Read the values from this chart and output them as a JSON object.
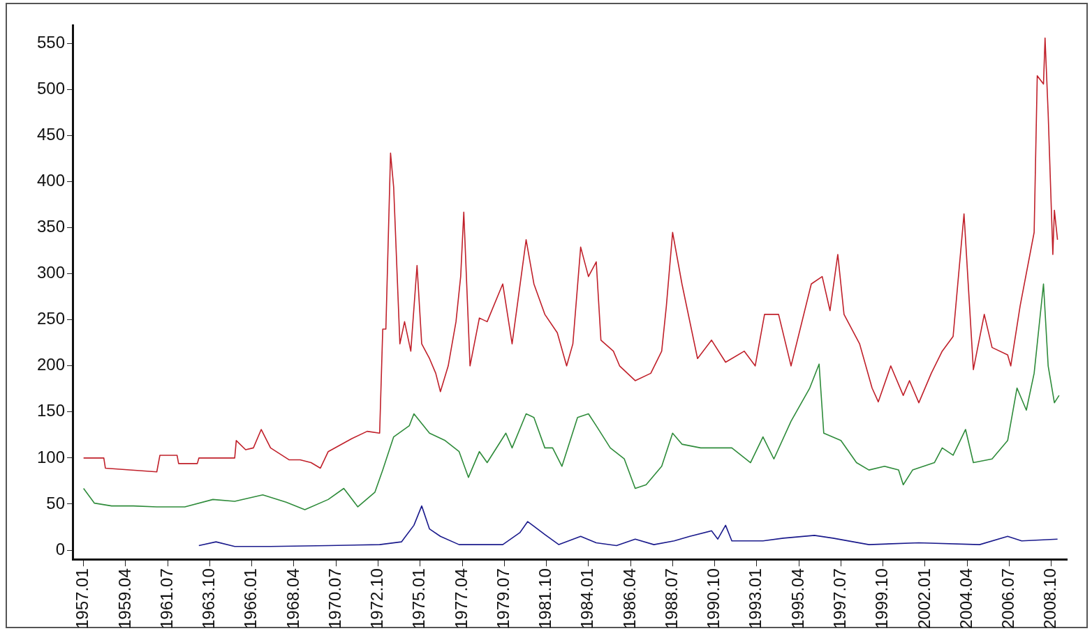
{
  "chart_data": {
    "type": "line",
    "xlim": [
      "1956-06",
      "2009-08"
    ],
    "xticks": [
      {
        "value": "1957-01",
        "label": "1957.01"
      },
      {
        "value": "1959-04",
        "label": "1959.04"
      },
      {
        "value": "1961-07",
        "label": "1961.07"
      },
      {
        "value": "1963-10",
        "label": "1963.10"
      },
      {
        "value": "1966-01",
        "label": "1966.01"
      },
      {
        "value": "1968-04",
        "label": "1968.04"
      },
      {
        "value": "1970-07",
        "label": "1970.07"
      },
      {
        "value": "1972-10",
        "label": "1972.10"
      },
      {
        "value": "1975-01",
        "label": "1975.01"
      },
      {
        "value": "1977-04",
        "label": "1977.04"
      },
      {
        "value": "1979-07",
        "label": "1979.07"
      },
      {
        "value": "1981-10",
        "label": "1981.10"
      },
      {
        "value": "1984-01",
        "label": "1984.01"
      },
      {
        "value": "1986-04",
        "label": "1986.04"
      },
      {
        "value": "1988-07",
        "label": "1988.07"
      },
      {
        "value": "1990-10",
        "label": "1990.10"
      },
      {
        "value": "1993-01",
        "label": "1993.01"
      },
      {
        "value": "1995-04",
        "label": "1995.04"
      },
      {
        "value": "1997-07",
        "label": "1997.07"
      },
      {
        "value": "1999-10",
        "label": "1999.10"
      },
      {
        "value": "2002-01",
        "label": "2002.01"
      },
      {
        "value": "2004-04",
        "label": "2004.04"
      },
      {
        "value": "2006-07",
        "label": "2006.07"
      },
      {
        "value": "2008-10",
        "label": "2008.10"
      }
    ],
    "ylim": [
      -10,
      570
    ],
    "yticks": [
      0,
      50,
      100,
      150,
      200,
      250,
      300,
      350,
      400,
      450,
      500,
      550
    ],
    "grid": false,
    "legend": false,
    "marker": "none",
    "line_style": "solid",
    "series": [
      {
        "color": "#c0202a",
        "x": [
          "1957-01",
          "1958-02",
          "1958-03",
          "1960-12",
          "1961-02",
          "1962-01",
          "1962-02",
          "1963-02",
          "1963-03",
          "1965-02",
          "1965-03",
          "1965-09",
          "1966-02",
          "1966-07",
          "1967-01",
          "1968-01",
          "1968-08",
          "1969-03",
          "1969-09",
          "1970-02",
          "1971-05",
          "1972-03",
          "1972-11",
          "1973-01",
          "1973-03",
          "1973-06",
          "1973-08",
          "1973-12",
          "1974-03",
          "1974-07",
          "1974-11",
          "1975-02",
          "1975-07",
          "1975-11",
          "1976-02",
          "1976-07",
          "1976-12",
          "1977-03",
          "1977-05",
          "1977-09",
          "1978-03",
          "1978-08",
          "1979-06",
          "1979-12",
          "1980-09",
          "1981-02",
          "1981-09",
          "1982-05",
          "1982-11",
          "1983-03",
          "1983-08",
          "1984-01",
          "1984-06",
          "1984-09",
          "1985-05",
          "1985-09",
          "1986-07",
          "1987-05",
          "1987-12",
          "1988-03",
          "1988-07",
          "1989-01",
          "1989-11",
          "1990-08",
          "1991-05",
          "1992-05",
          "1992-12",
          "1993-06",
          "1994-03",
          "1994-11",
          "1995-12",
          "1996-07",
          "1996-12",
          "1997-05",
          "1997-09",
          "1998-07",
          "1999-03",
          "1999-07",
          "2000-03",
          "2000-11",
          "2001-03",
          "2001-09",
          "2002-05",
          "2002-12",
          "2003-07",
          "2004-02",
          "2004-08",
          "2005-03",
          "2005-08",
          "2006-06",
          "2006-08",
          "2007-02",
          "2007-11",
          "2008-01",
          "2008-05",
          "2008-06",
          "2008-08",
          "2008-11",
          "2008-12",
          "2009-02"
        ],
        "values": [
          100,
          100,
          89,
          85,
          103,
          103,
          94,
          94,
          100,
          100,
          119,
          109,
          111,
          131,
          111,
          98,
          98,
          95,
          89,
          107,
          121,
          129,
          127,
          240,
          240,
          431,
          394,
          224,
          248,
          216,
          309,
          224,
          208,
          192,
          172,
          200,
          248,
          297,
          367,
          200,
          252,
          248,
          289,
          224,
          337,
          289,
          256,
          236,
          200,
          224,
          329,
          297,
          313,
          228,
          216,
          200,
          184,
          192,
          216,
          265,
          345,
          289,
          208,
          228,
          204,
          216,
          200,
          256,
          256,
          200,
          289,
          297,
          260,
          321,
          256,
          224,
          176,
          161,
          200,
          168,
          184,
          160,
          192,
          216,
          232,
          365,
          196,
          256,
          220,
          212,
          200,
          265,
          345,
          515,
          506,
          556,
          474,
          321,
          369,
          337
        ]
      },
      {
        "color": "#2e8b3a",
        "x": [
          "1957-01",
          "1957-08",
          "1958-07",
          "1959-09",
          "1960-12",
          "1962-06",
          "1963-12",
          "1965-02",
          "1966-08",
          "1967-11",
          "1968-11",
          "1970-02",
          "1970-12",
          "1971-09",
          "1972-08",
          "1973-01",
          "1973-08",
          "1974-06",
          "1974-09",
          "1975-07",
          "1976-05",
          "1977-02",
          "1977-08",
          "1978-03",
          "1978-08",
          "1979-08",
          "1979-12",
          "1980-09",
          "1981-02",
          "1981-09",
          "1982-02",
          "1982-08",
          "1983-06",
          "1984-01",
          "1984-06",
          "1985-03",
          "1985-12",
          "1986-07",
          "1987-02",
          "1987-12",
          "1988-07",
          "1989-01",
          "1990-01",
          "1990-08",
          "1991-09",
          "1992-09",
          "1993-05",
          "1993-12",
          "1994-11",
          "1995-11",
          "1996-05",
          "1996-08",
          "1997-07",
          "1998-05",
          "1999-01",
          "1999-11",
          "2000-08",
          "2000-11",
          "2001-05",
          "2002-07",
          "2002-12",
          "2003-07",
          "2004-03",
          "2004-08",
          "2005-08",
          "2006-06",
          "2006-12",
          "2007-06",
          "2007-11",
          "2008-05",
          "2008-08",
          "2008-12",
          "2009-03"
        ],
        "values": [
          67,
          51,
          48,
          48,
          47,
          47,
          55,
          53,
          60,
          52,
          44,
          55,
          67,
          47,
          63,
          87,
          123,
          135,
          148,
          127,
          119,
          107,
          79,
          107,
          95,
          127,
          111,
          148,
          144,
          111,
          111,
          91,
          144,
          148,
          135,
          111,
          99,
          67,
          71,
          91,
          127,
          115,
          111,
          111,
          111,
          95,
          123,
          99,
          140,
          176,
          202,
          127,
          119,
          95,
          87,
          91,
          87,
          71,
          87,
          95,
          111,
          103,
          131,
          95,
          99,
          119,
          176,
          152,
          192,
          289,
          200,
          160,
          168
        ]
      },
      {
        "color": "#1a1a8c",
        "x": [
          "1963-03",
          "1964-02",
          "1965-02",
          "1967-01",
          "1970-02",
          "1972-11",
          "1974-01",
          "1974-09",
          "1975-02",
          "1975-07",
          "1976-02",
          "1977-02",
          "1979-06",
          "1980-05",
          "1980-10",
          "1981-09",
          "1982-06",
          "1983-08",
          "1984-06",
          "1985-07",
          "1986-07",
          "1987-07",
          "1988-08",
          "1989-06",
          "1990-08",
          "1990-12",
          "1991-05",
          "1991-09",
          "1993-05",
          "1994-06",
          "1996-02",
          "1997-02",
          "1999-01",
          "2001-09",
          "2004-12",
          "2006-06",
          "2007-03",
          "2009-02"
        ],
        "values": [
          5,
          9,
          4,
          4,
          5,
          6,
          9,
          27,
          48,
          23,
          15,
          6,
          6,
          19,
          31,
          17,
          6,
          15,
          8,
          5,
          12,
          6,
          10,
          15,
          21,
          12,
          27,
          10,
          10,
          13,
          16,
          13,
          6,
          8,
          6,
          15,
          10,
          12
        ]
      }
    ]
  }
}
